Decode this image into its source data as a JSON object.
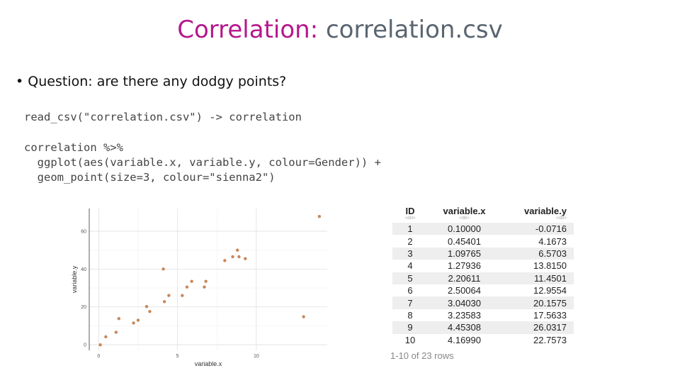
{
  "title": {
    "accent": "Correlation:",
    "rest": " correlation.csv"
  },
  "bullet": {
    "marker": "•",
    "label": "Question",
    "text": ": are there any dodgy points?"
  },
  "code": {
    "line1": "read_csv(\"correlation.csv\") -> correlation",
    "line2": "correlation %>%",
    "line3": "  ggplot(aes(variable.x, variable.y, colour=Gender)) +",
    "line4": "  geom_point(size=3, colour=\"sienna2\")"
  },
  "chart_data": {
    "type": "scatter",
    "xlabel": "variable.x",
    "ylabel": "variable.y",
    "xticks": [
      0,
      5,
      10
    ],
    "yticks": [
      0,
      20,
      40,
      60
    ],
    "xlim": [
      -0.6,
      14.5
    ],
    "ylim": [
      -3,
      72
    ],
    "grid": true,
    "point_color": "#c8875a",
    "points": [
      {
        "x": 0.1,
        "y": -0.07
      },
      {
        "x": 0.45,
        "y": 4.17
      },
      {
        "x": 1.1,
        "y": 6.57
      },
      {
        "x": 1.28,
        "y": 13.82
      },
      {
        "x": 2.21,
        "y": 11.45
      },
      {
        "x": 2.5,
        "y": 12.96
      },
      {
        "x": 3.04,
        "y": 20.16
      },
      {
        "x": 3.24,
        "y": 17.56
      },
      {
        "x": 4.45,
        "y": 26.03
      },
      {
        "x": 4.17,
        "y": 22.76
      },
      {
        "x": 4.1,
        "y": 40.0
      },
      {
        "x": 5.3,
        "y": 26.0
      },
      {
        "x": 5.6,
        "y": 30.5
      },
      {
        "x": 5.9,
        "y": 33.5
      },
      {
        "x": 6.7,
        "y": 30.5
      },
      {
        "x": 6.8,
        "y": 33.5
      },
      {
        "x": 8.0,
        "y": 44.5
      },
      {
        "x": 8.5,
        "y": 46.5
      },
      {
        "x": 8.8,
        "y": 50.0
      },
      {
        "x": 8.9,
        "y": 46.5
      },
      {
        "x": 9.3,
        "y": 45.5
      },
      {
        "x": 13.0,
        "y": 14.8
      },
      {
        "x": 14.0,
        "y": 67.8
      }
    ]
  },
  "table": {
    "headers": [
      {
        "label": "ID",
        "sub": "<dbl>"
      },
      {
        "label": "variable.x",
        "sub": "<dbl>"
      },
      {
        "label": "variable.y",
        "sub": "<dbl>"
      }
    ],
    "rows": [
      [
        "1",
        "0.10000",
        "-0.0716"
      ],
      [
        "2",
        "0.45401",
        "4.1673"
      ],
      [
        "3",
        "1.09765",
        "6.5703"
      ],
      [
        "4",
        "1.27936",
        "13.8150"
      ],
      [
        "5",
        "2.20611",
        "11.4501"
      ],
      [
        "6",
        "2.50064",
        "12.9554"
      ],
      [
        "7",
        "3.04030",
        "20.1575"
      ],
      [
        "8",
        "3.23583",
        "17.5633"
      ],
      [
        "9",
        "4.45308",
        "26.0317"
      ],
      [
        "10",
        "4.16990",
        "22.7573"
      ]
    ],
    "footer": "1-10 of 23 rows"
  }
}
